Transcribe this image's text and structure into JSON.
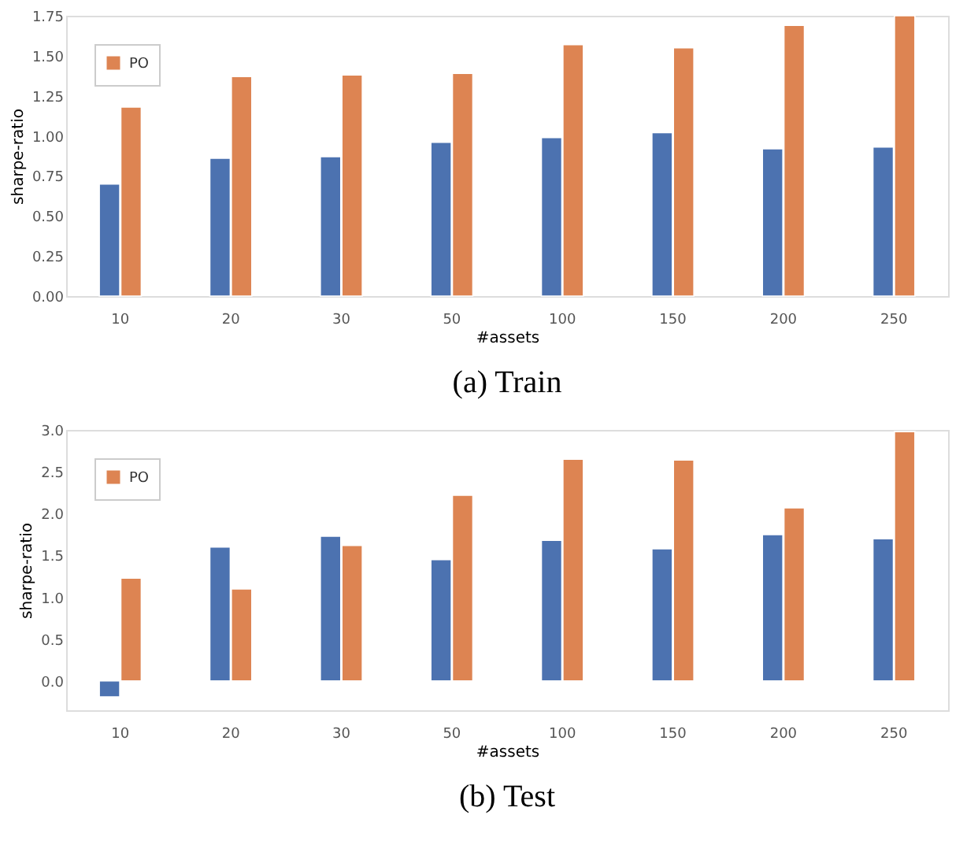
{
  "chart_data": [
    {
      "type": "bar",
      "title": "(a) Train",
      "xlabel": "#assets",
      "ylabel": "sharpe-ratio",
      "categories": [
        "10",
        "20",
        "30",
        "50",
        "100",
        "150",
        "200",
        "250"
      ],
      "series": [
        {
          "color": "#4c72b0",
          "values": [
            0.7,
            0.86,
            0.87,
            0.96,
            0.99,
            1.02,
            0.92,
            0.93
          ]
        },
        {
          "name": "PO",
          "color": "#dd8452",
          "values": [
            1.18,
            1.37,
            1.38,
            1.39,
            1.57,
            1.55,
            1.69,
            1.75
          ]
        }
      ],
      "ylim": [
        0,
        1.75
      ],
      "yticks": [
        {
          "value": 0,
          "label": "0.00"
        },
        {
          "value": 0.25,
          "label": "0.25"
        },
        {
          "value": 0.5,
          "label": "0.50"
        },
        {
          "value": 0.75,
          "label": "0.75"
        },
        {
          "value": 1,
          "label": "1.00"
        },
        {
          "value": 1.25,
          "label": "1.25"
        },
        {
          "value": 1.5,
          "label": "1.50"
        },
        {
          "value": 1.75,
          "label": "1.75"
        }
      ],
      "grid": false,
      "legend": "top left"
    },
    {
      "type": "bar",
      "title": "(b) Test",
      "xlabel": "#assets",
      "ylabel": "sharpe-ratio",
      "categories": [
        "10",
        "20",
        "30",
        "50",
        "100",
        "150",
        "200",
        "250"
      ],
      "series": [
        {
          "color": "#4c72b0",
          "values": [
            -0.19,
            1.6,
            1.73,
            1.45,
            1.68,
            1.58,
            1.75,
            1.7
          ]
        },
        {
          "name": "PO",
          "color": "#dd8452",
          "values": [
            1.23,
            1.1,
            1.62,
            2.22,
            2.65,
            2.64,
            2.07,
            2.98
          ]
        }
      ],
      "ylim": [
        -0.35,
        3.0
      ],
      "yticks": [
        {
          "value": 0,
          "label": "0.0"
        },
        {
          "value": 0.5,
          "label": "0.5"
        },
        {
          "value": 1,
          "label": "1.0"
        },
        {
          "value": 1.5,
          "label": "1.5"
        },
        {
          "value": 2,
          "label": "2.0"
        },
        {
          "value": 2.5,
          "label": "2.5"
        },
        {
          "value": 3,
          "label": "3.0"
        }
      ],
      "grid": false,
      "legend": "top left"
    }
  ]
}
